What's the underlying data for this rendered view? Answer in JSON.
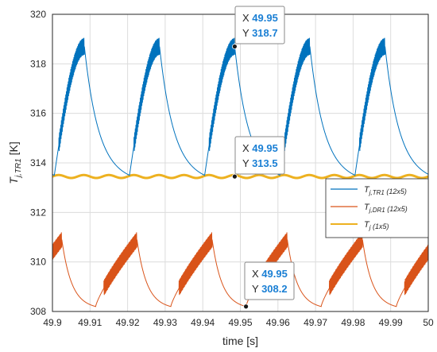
{
  "chart_data": {
    "type": "line",
    "title": "",
    "xlabel": "time [s]",
    "ylabel_main": "T",
    "ylabel_sub": "j,TR1",
    "ylabel_unit": " [K]",
    "xlim": [
      49.9,
      50.0
    ],
    "ylim": [
      308,
      320
    ],
    "grid": true,
    "xticks": [
      "49.9",
      "49.91",
      "49.92",
      "49.93",
      "49.94",
      "49.95",
      "49.96",
      "49.97",
      "49.98",
      "49.99",
      "50"
    ],
    "xtick_values": [
      49.9,
      49.91,
      49.92,
      49.93,
      49.94,
      49.95,
      49.96,
      49.97,
      49.98,
      49.99,
      50.0
    ],
    "yticks": [
      "308",
      "310",
      "312",
      "314",
      "316",
      "318",
      "320"
    ],
    "ytick_values": [
      308,
      310,
      312,
      314,
      316,
      318,
      320
    ],
    "period": 0.02,
    "series": [
      {
        "name_main": "T",
        "name_sub": "j,TR1",
        "name_tail": " (12x5)",
        "color": "#0072BD",
        "min": 313.5,
        "max": 318.7,
        "peak_times": [
          49.9085,
          49.9285,
          49.9485,
          49.9685,
          49.9885
        ],
        "min_times": [
          49.9005,
          49.9205,
          49.9405,
          49.9605,
          49.9805
        ]
      },
      {
        "name_main": "T",
        "name_sub": "j,DR1",
        "name_tail": " (12x5)",
        "color": "#D95319",
        "min": 308.2,
        "max": 310.9,
        "peak_times": [
          49.9025,
          49.9225,
          49.9425,
          49.9625,
          49.9825
        ],
        "min_times": [
          49.9115,
          49.9315,
          49.9515,
          49.9715,
          49.9915
        ]
      },
      {
        "name_main": "T",
        "name_sub": "j",
        "name_tail": " (1x5)",
        "color": "#EDB120",
        "mean": 313.45,
        "ripple": 0.06
      }
    ],
    "datatips": [
      {
        "x_label": "X",
        "x_value": "49.95",
        "y_label": "Y",
        "y_value": "318.7",
        "x": 49.9485,
        "y": 318.7
      },
      {
        "x_label": "X",
        "x_value": "49.95",
        "y_label": "Y",
        "y_value": "313.5",
        "x": 49.9485,
        "y": 313.45
      },
      {
        "x_label": "X",
        "x_value": "49.95",
        "y_label": "Y",
        "y_value": "308.2",
        "x": 49.9515,
        "y": 308.2
      }
    ],
    "legend_position": "right"
  }
}
